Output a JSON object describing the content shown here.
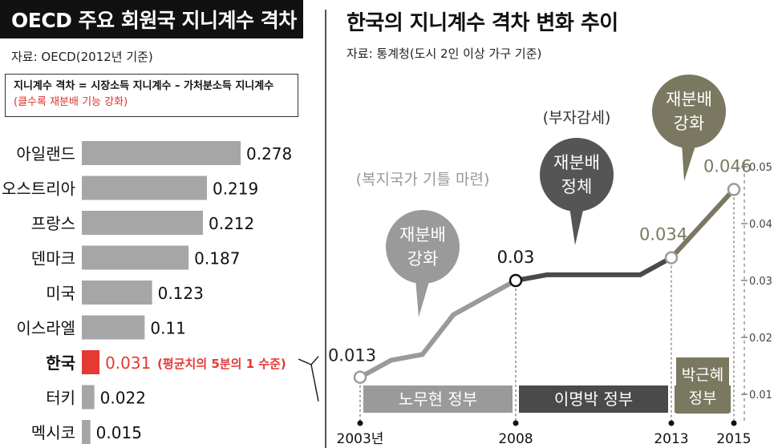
{
  "left": {
    "title": "OECD 주요 회원국 지니계수 격차",
    "source": "자료: OECD(2012년 기준)",
    "note_line1": "지니계수 격차 = 시장소득 지니계수 – 가처분소득 지니계수",
    "note_line2": "(클수록 재분배 기능 강화)"
  },
  "right": {
    "title": "한국의 지니계수 격차 변화 추이",
    "source": "자료: 통계청(도시 2인 이상 가구 기준)"
  },
  "colors": {
    "bar_gray": "#a6a6a6",
    "korea_red": "#e53935",
    "line_light": "#9a9a9a",
    "line_dark": "#4a4a4a",
    "olive": "#7a7860"
  },
  "chart_data": [
    {
      "type": "bar",
      "orientation": "horizontal",
      "categories": [
        "아일랜드",
        "오스트리아",
        "프랑스",
        "덴마크",
        "미국",
        "이스라엘",
        "한국",
        "터키",
        "멕시코"
      ],
      "values": [
        0.278,
        0.219,
        0.212,
        0.187,
        0.123,
        0.11,
        0.031,
        0.022,
        0.015
      ],
      "value_labels": [
        "0.278",
        "0.219",
        "0.212",
        "0.187",
        "0.123",
        "0.11",
        "0.031",
        "0.022",
        "0.015"
      ],
      "highlight_index": 6,
      "highlight_note": "(평균치의 5분의 1 수준)"
    },
    {
      "type": "line",
      "x": [
        2003,
        2004,
        2005,
        2006,
        2007,
        2008,
        2009,
        2010,
        2011,
        2012,
        2013,
        2014,
        2015
      ],
      "y": [
        0.013,
        0.016,
        0.017,
        0.024,
        0.027,
        0.03,
        0.031,
        0.031,
        0.031,
        0.031,
        0.034,
        0.04,
        0.046
      ],
      "x_tick_labels": [
        "2003년",
        "2008",
        "2013",
        "2015"
      ],
      "x_tick_years": [
        2003,
        2008,
        2013,
        2015
      ],
      "y_ticks": [
        0.01,
        0.02,
        0.03,
        0.04,
        0.05
      ],
      "y_tick_labels": [
        "0.01",
        "0.02",
        "0.03",
        "0.04",
        "0.05"
      ],
      "ylim": [
        0.005,
        0.051
      ],
      "point_labels": [
        {
          "year": 2003,
          "label": "0.013"
        },
        {
          "year": 2008,
          "label": "0.03"
        },
        {
          "year": 2013,
          "label": "0.034"
        },
        {
          "year": 2015,
          "label": "0.046"
        }
      ],
      "periods": [
        {
          "label": "노무현 정부",
          "start": 2003,
          "end": 2008
        },
        {
          "label": "이명박 정부",
          "start": 2008,
          "end": 2013
        },
        {
          "label": "박근혜 정부",
          "start": 2013,
          "end": 2015
        }
      ],
      "annotations": [
        {
          "caption": "(복지국가 기틀 마련)",
          "bubble": "재분배 강화"
        },
        {
          "caption": "(부자감세)",
          "bubble": "재분배 정체"
        },
        {
          "caption": "",
          "bubble": "재분배 강화"
        }
      ]
    }
  ]
}
